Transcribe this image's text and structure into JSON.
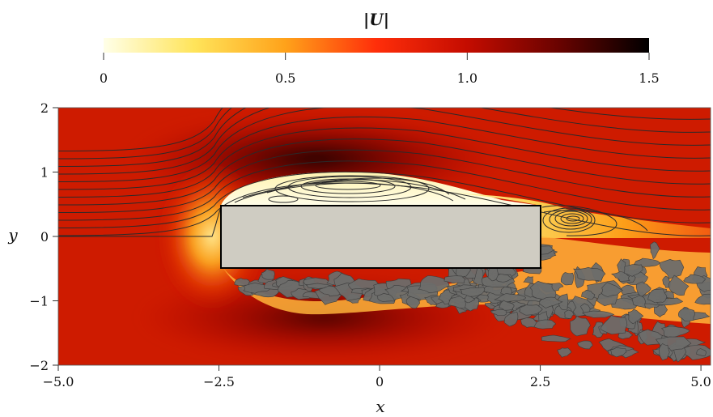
{
  "chart_data": {
    "type": "heatmap",
    "title": "|U|",
    "xlabel": "x",
    "ylabel": "y",
    "xlim": [
      -5.0,
      5.15
    ],
    "ylim": [
      -2.0,
      2.0
    ],
    "x_ticks": [
      -5.0,
      -2.5,
      0,
      2.5,
      5.0
    ],
    "x_tick_labels": [
      "−5.0",
      "−2.5",
      "0",
      "2.5",
      "5.0"
    ],
    "y_ticks": [
      -2,
      -1,
      0,
      1,
      2
    ],
    "y_tick_labels": [
      "−2",
      "−1",
      "0",
      "1",
      "2"
    ],
    "colorbar": {
      "label": "|U|",
      "range": [
        0,
        1.5
      ],
      "ticks": [
        0,
        0.5,
        1.0,
        1.5
      ],
      "tick_labels": [
        "0",
        "0.5",
        "1.0",
        "1.5"
      ],
      "colors": [
        "#ffffe8",
        "#ffe45a",
        "#ffa21a",
        "#ff2e0a",
        "#c40c00",
        "#6a0300",
        "#000000"
      ]
    },
    "body": {
      "shape": "rectangle",
      "x": [
        -2.5,
        2.5
      ],
      "y": [
        -0.5,
        0.5
      ],
      "color": "#cfccc2"
    },
    "freestream_magnitude": 1.0,
    "upper_half": "streamlines",
    "lower_half": "vortical structures (grey iso-surfaces)",
    "recirculation_bubbles": [
      {
        "center": [
          -0.7,
          0.8
        ],
        "note": "leading-edge separation bubble above body"
      },
      {
        "center": [
          3.0,
          0.28
        ],
        "note": "near-wake vortex"
      }
    ],
    "colors": {
      "surface": "#6d6d6b",
      "streamline": "#2a2a2a"
    }
  }
}
